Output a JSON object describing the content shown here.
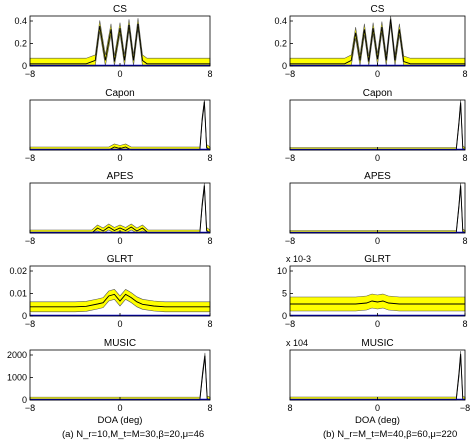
{
  "figure": {
    "caption_left": "(a) N_r=10,M_t=M=30,β=20,μ=46",
    "caption_right": "(b) N_r=M_t=M=40,β=60,μ=220"
  },
  "chart_data": [
    {
      "id": "a-cs",
      "type": "line",
      "title": "CS",
      "ylim": [
        0,
        0.45
      ],
      "yticks": [
        "0",
        "0.2",
        "0.4"
      ],
      "xlim": [
        -8,
        8
      ],
      "xticks": [
        "−8",
        "0",
        "8"
      ],
      "xlabel": "",
      "series": [
        {
          "x": [
            -8,
            -3,
            -2.2,
            -1.8,
            -1.3,
            -0.8,
            -0.5,
            0,
            0.4,
            0.8,
            1.2,
            1.6,
            2.0,
            2.4,
            3,
            8
          ],
          "y": [
            0.02,
            0.02,
            0.05,
            0.36,
            0.05,
            0.33,
            0.04,
            0.34,
            0.05,
            0.37,
            0.05,
            0.38,
            0.05,
            0.02,
            0.02,
            0.02
          ]
        }
      ],
      "band_halfwidth": 0.05
    },
    {
      "id": "b-cs",
      "type": "line",
      "title": "CS",
      "ylim": [
        0,
        0.45
      ],
      "yticks": [
        "0",
        "0.2",
        "0.4"
      ],
      "xlim": [
        -8,
        8
      ],
      "xticks": [
        "−8",
        "0",
        "8"
      ],
      "xlabel": "",
      "series": [
        {
          "x": [
            -8,
            -3,
            -2.4,
            -2,
            -1.6,
            -1.2,
            -0.8,
            -0.4,
            0,
            0.4,
            0.8,
            1.2,
            1.6,
            2,
            2.4,
            3,
            8
          ],
          "y": [
            0.02,
            0.02,
            0.05,
            0.3,
            0.05,
            0.33,
            0.04,
            0.34,
            0.06,
            0.35,
            0.05,
            0.42,
            0.05,
            0.33,
            0.04,
            0.02,
            0.02
          ]
        }
      ],
      "band_halfwidth": 0.05
    },
    {
      "id": "a-capon",
      "type": "line",
      "title": "Capon",
      "ylim": [
        0,
        1
      ],
      "yticks": [],
      "xlim": [
        -8,
        8
      ],
      "xticks": [
        "−8",
        "0",
        "8"
      ],
      "xlabel": "",
      "series": [
        {
          "x": [
            -8,
            -1,
            -0.5,
            0,
            0.5,
            1,
            7.1,
            7.3,
            7.5,
            7.7,
            8
          ],
          "y": [
            0,
            0,
            0.06,
            0.03,
            0.06,
            0,
            0,
            0.6,
            0.97,
            0.05,
            0
          ]
        }
      ],
      "band_halfwidth": 0.06
    },
    {
      "id": "b-capon",
      "type": "line",
      "title": "Capon",
      "ylim": [
        0,
        1
      ],
      "yticks": [],
      "xlim": [
        -8,
        8
      ],
      "xticks": [
        "−8",
        "0",
        "8"
      ],
      "xlabel": "",
      "series": [
        {
          "x": [
            -8,
            7.2,
            7.45,
            7.6,
            7.8,
            8
          ],
          "y": [
            0,
            0,
            0.55,
            0.95,
            0.03,
            0
          ]
        }
      ],
      "band_halfwidth": 0.05
    },
    {
      "id": "a-apes",
      "type": "line",
      "title": "APES",
      "ylim": [
        0,
        1
      ],
      "yticks": [],
      "xlim": [
        -8,
        8
      ],
      "xticks": [
        "−8",
        "0",
        "8"
      ],
      "xlabel": "",
      "series": [
        {
          "x": [
            -8,
            -2.5,
            -2,
            -1.5,
            -1,
            -0.5,
            0,
            0.5,
            1,
            1.5,
            2,
            2.5,
            7.1,
            7.3,
            7.5,
            7.7,
            8
          ],
          "y": [
            0,
            0,
            0.1,
            0.04,
            0.12,
            0.05,
            0.1,
            0.05,
            0.12,
            0.04,
            0.1,
            0,
            0,
            0.55,
            0.95,
            0.05,
            0
          ]
        }
      ],
      "band_halfwidth": 0.06
    },
    {
      "id": "b-apes",
      "type": "line",
      "title": "APES",
      "ylim": [
        0,
        1
      ],
      "yticks": [],
      "xlim": [
        -8,
        8
      ],
      "xticks": [
        "−8",
        "0",
        "8"
      ],
      "xlabel": "",
      "series": [
        {
          "x": [
            -8,
            7.2,
            7.45,
            7.6,
            7.8,
            8
          ],
          "y": [
            0,
            0,
            0.55,
            0.95,
            0.03,
            0
          ]
        }
      ],
      "band_halfwidth": 0.05
    },
    {
      "id": "a-glrt",
      "type": "line",
      "title": "GLRT",
      "ylim": [
        0,
        0.03
      ],
      "yticks": [
        "0",
        "0.01",
        "0.02"
      ],
      "xlim": [
        -8,
        8
      ],
      "xticks": [
        "−8",
        "0",
        "8"
      ],
      "xlabel": "",
      "series": [
        {
          "x": [
            -8,
            -4,
            -3,
            -2,
            -1.5,
            -1,
            -0.5,
            0,
            0.5,
            1,
            1.5,
            2,
            3,
            4,
            8
          ],
          "y": [
            0.0055,
            0.0055,
            0.0058,
            0.0072,
            0.008,
            0.012,
            0.013,
            0.009,
            0.013,
            0.011,
            0.0085,
            0.007,
            0.006,
            0.0055,
            0.0055
          ]
        }
      ],
      "band_halfwidth": 0.003
    },
    {
      "id": "b-glrt",
      "type": "line",
      "title": "GLRT",
      "ylim": [
        0,
        0.01
      ],
      "yticks": [
        "0",
        "5",
        "10"
      ],
      "multiplier": "x 10^-3",
      "xlim": [
        -8,
        8
      ],
      "xticks": [
        "−8",
        "0",
        "8"
      ],
      "xlabel": "",
      "series": [
        {
          "x": [
            -8,
            -2,
            -1,
            -0.5,
            0,
            0.5,
            1,
            2,
            8
          ],
          "y": [
            0.0024,
            0.0024,
            0.0026,
            0.003,
            0.0028,
            0.003,
            0.0026,
            0.0024,
            0.0024
          ]
        }
      ],
      "band_halfwidth": 0.0014
    },
    {
      "id": "a-music",
      "type": "line",
      "title": "MUSIC",
      "ylim": [
        0,
        2600
      ],
      "yticks": [
        "0",
        "1000",
        "2000"
      ],
      "xlim": [
        -8,
        8
      ],
      "xticks": [
        "−8",
        "0",
        "8"
      ],
      "xlabel": "DOA (deg)",
      "series": [
        {
          "x": [
            -8,
            7.1,
            7.35,
            7.55,
            7.75,
            8
          ],
          "y": [
            0,
            0,
            1400,
            2300,
            60,
            0
          ]
        }
      ],
      "band_halfwidth": 150
    },
    {
      "id": "b-music",
      "type": "line",
      "title": "MUSIC",
      "ylim": [
        0,
        50000
      ],
      "yticks": [],
      "multiplier": "x 10^4",
      "xlim": [
        -8,
        8
      ],
      "xticks": [
        "8",
        "0",
        "−8"
      ],
      "xlabel": "DOA (deg)",
      "series": [
        {
          "x": [
            -8,
            7.2,
            7.45,
            7.6,
            7.8,
            8
          ],
          "y": [
            0,
            0,
            26000,
            46000,
            500,
            0
          ]
        }
      ],
      "band_halfwidth": 3000
    }
  ],
  "colors": {
    "band": "#ffff00",
    "mean": "#000000",
    "baseline": "#0000cc",
    "axis": "#000000"
  }
}
